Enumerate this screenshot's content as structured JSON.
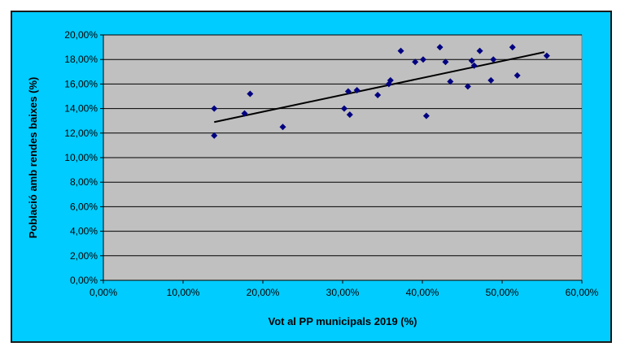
{
  "chart_data": {
    "type": "scatter",
    "xlabel": "Vot al PP municipals 2019 (%)",
    "ylabel": "Població amb rendes baixes (%)",
    "xlim": [
      0,
      60
    ],
    "ylim": [
      0,
      20
    ],
    "x_ticks": [
      0,
      10,
      20,
      30,
      40,
      50,
      60
    ],
    "y_ticks": [
      0,
      2,
      4,
      6,
      8,
      10,
      12,
      14,
      16,
      18,
      20
    ],
    "x_tick_labels": [
      "0,00%",
      "10,00%",
      "20,00%",
      "30,00%",
      "40,00%",
      "50,00%",
      "60,00%"
    ],
    "y_tick_labels": [
      "0,00%",
      "2,00%",
      "4,00%",
      "6,00%",
      "8,00%",
      "10,00%",
      "12,00%",
      "14,00%",
      "16,00%",
      "18,00%",
      "20,00%"
    ],
    "grid": "horizontal",
    "legend": "none",
    "colors": {
      "frame_background": "#00ccff",
      "plot_background": "#c0c0c0",
      "points": "#000080",
      "trendline": "#000000",
      "gridlines": "#000000"
    },
    "points": [
      {
        "x": 13.9,
        "y": 14.0
      },
      {
        "x": 13.9,
        "y": 11.8
      },
      {
        "x": 17.7,
        "y": 13.6
      },
      {
        "x": 18.4,
        "y": 15.2
      },
      {
        "x": 22.5,
        "y": 12.5
      },
      {
        "x": 30.2,
        "y": 14.0
      },
      {
        "x": 30.7,
        "y": 15.4
      },
      {
        "x": 30.9,
        "y": 13.5
      },
      {
        "x": 31.8,
        "y": 15.5
      },
      {
        "x": 34.4,
        "y": 15.1
      },
      {
        "x": 35.8,
        "y": 16.0
      },
      {
        "x": 36.0,
        "y": 16.3
      },
      {
        "x": 37.3,
        "y": 18.7
      },
      {
        "x": 39.1,
        "y": 17.8
      },
      {
        "x": 40.1,
        "y": 18.0
      },
      {
        "x": 40.5,
        "y": 13.4
      },
      {
        "x": 42.2,
        "y": 19.0
      },
      {
        "x": 42.9,
        "y": 17.8
      },
      {
        "x": 43.5,
        "y": 16.2
      },
      {
        "x": 45.7,
        "y": 15.8
      },
      {
        "x": 46.2,
        "y": 17.9
      },
      {
        "x": 46.5,
        "y": 17.5
      },
      {
        "x": 47.2,
        "y": 18.7
      },
      {
        "x": 48.6,
        "y": 16.3
      },
      {
        "x": 48.9,
        "y": 18.0
      },
      {
        "x": 51.3,
        "y": 19.0
      },
      {
        "x": 51.9,
        "y": 16.7
      },
      {
        "x": 55.6,
        "y": 18.3
      }
    ],
    "trendline": {
      "x": [
        13.9,
        55.3
      ],
      "y": [
        12.9,
        18.6
      ]
    }
  }
}
